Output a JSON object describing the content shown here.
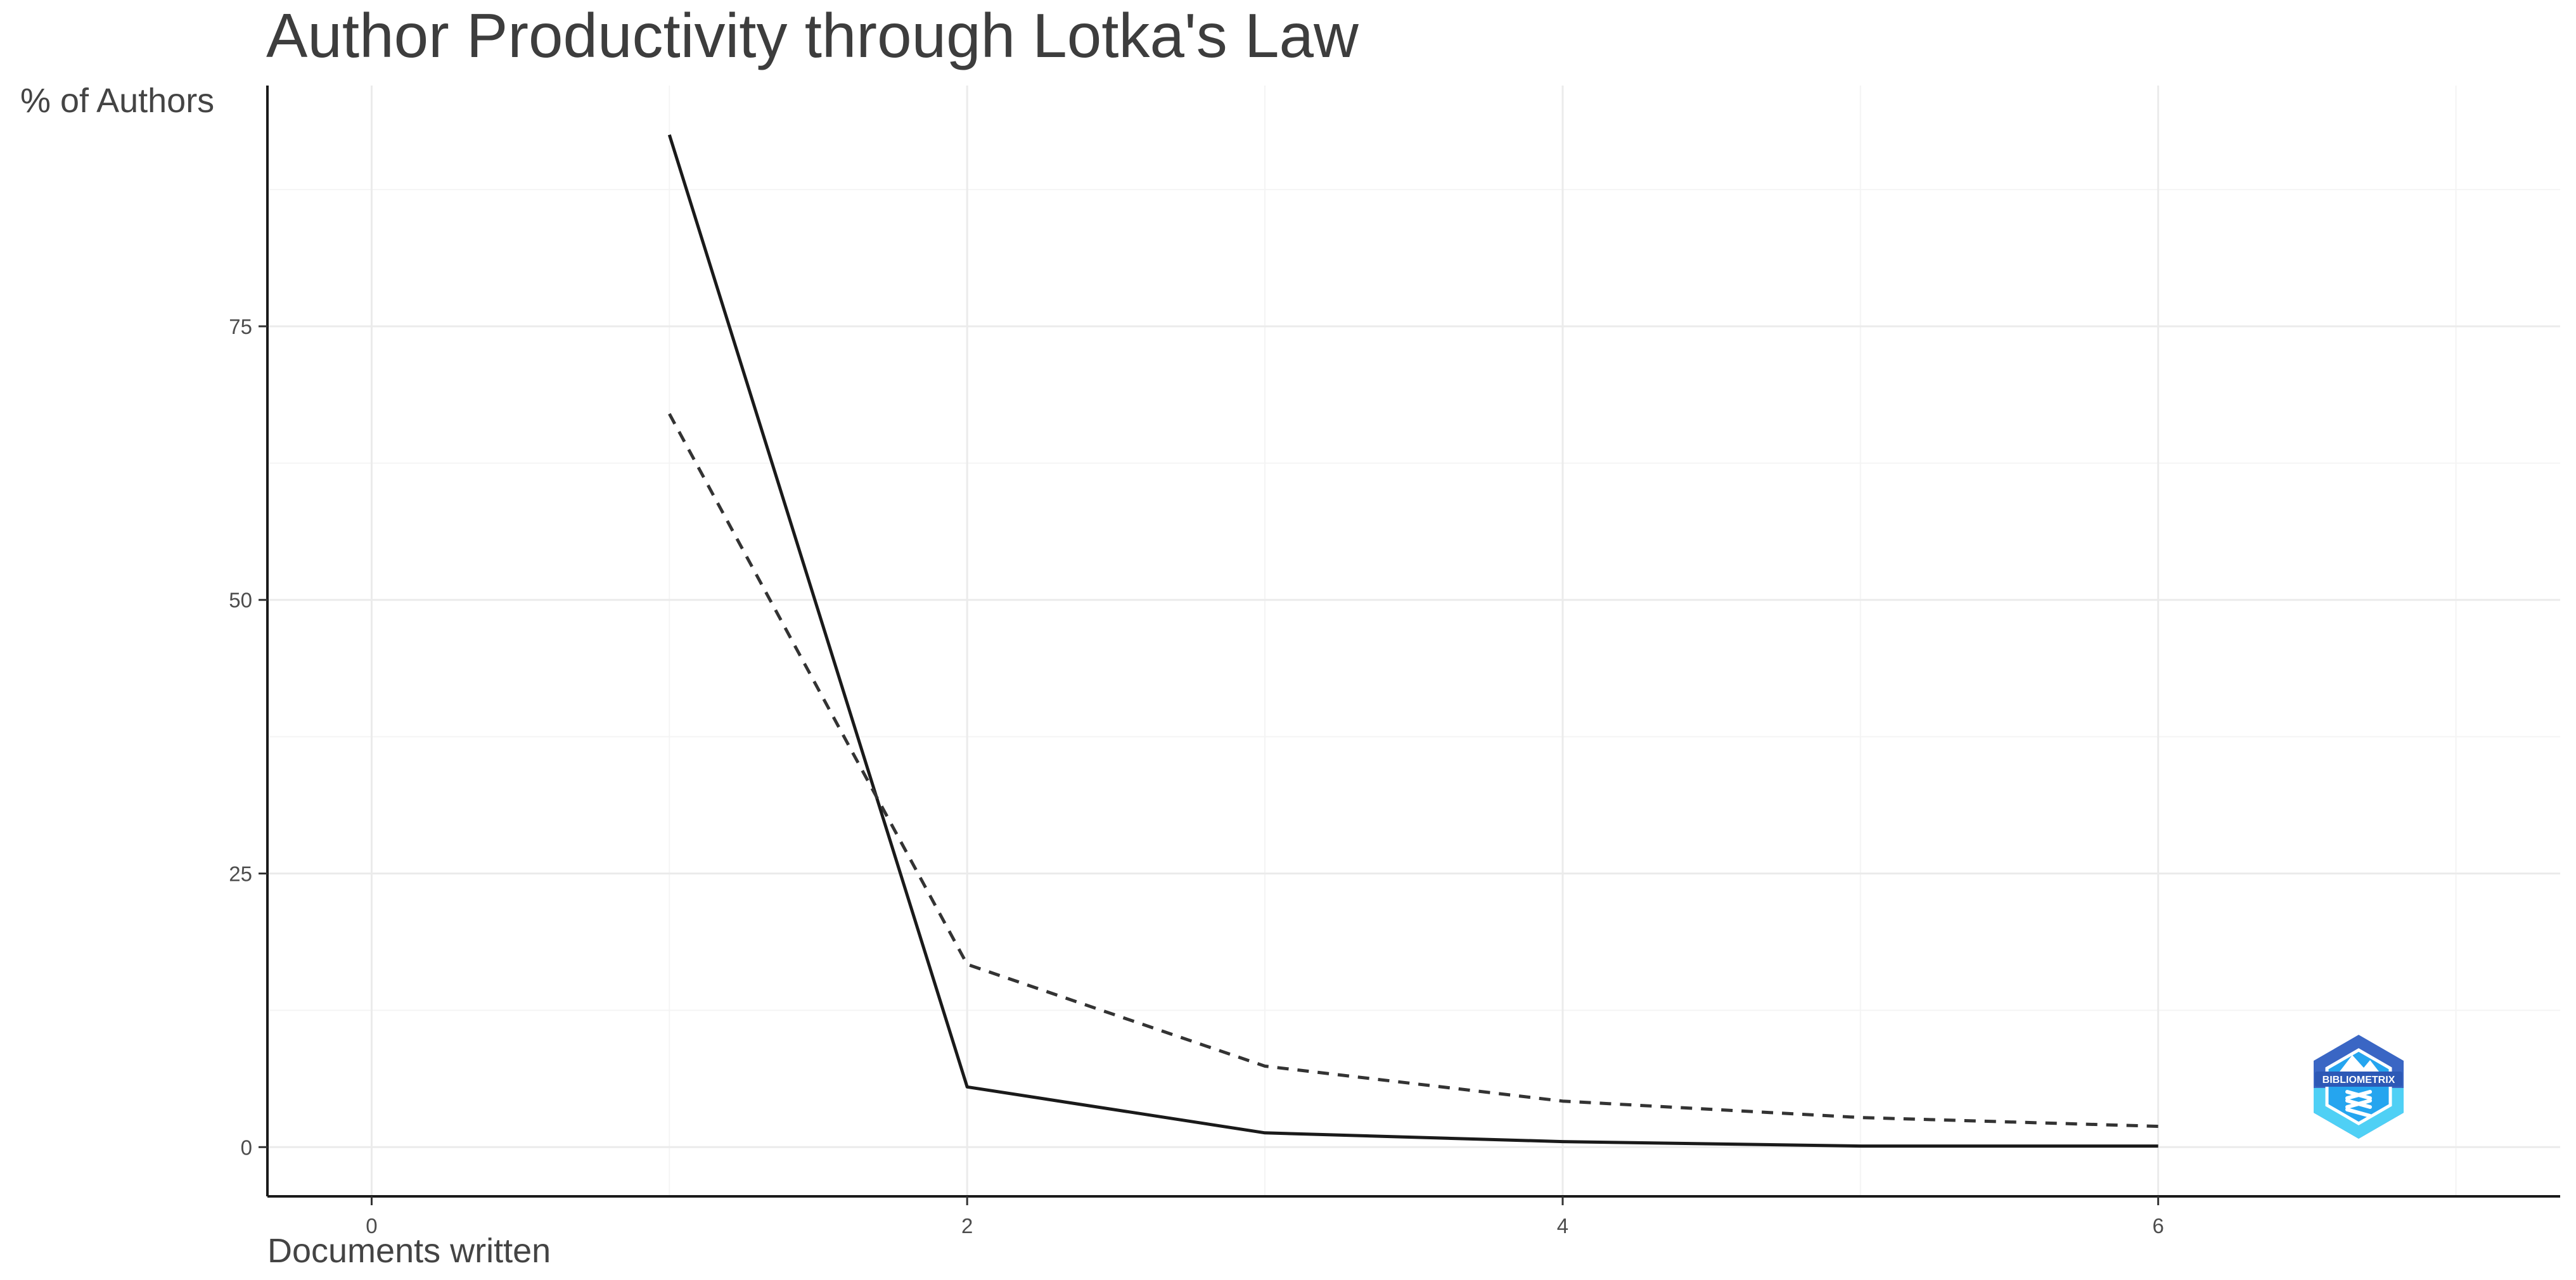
{
  "chart_data": {
    "type": "line",
    "title": "Author Productivity through Lotka's Law",
    "xlabel": "Documents written",
    "ylabel": "% of Authors",
    "xlim": [
      -0.35,
      7.35
    ],
    "ylim": [
      -4.5,
      97
    ],
    "x_ticks": [
      0,
      2,
      4,
      6
    ],
    "y_ticks": [
      0,
      25,
      50,
      75
    ],
    "grid": true,
    "legend": "none",
    "series": [
      {
        "line_style": "solid",
        "color": "#1a1a1a",
        "points": [
          {
            "x": 1,
            "y": 92.5
          },
          {
            "x": 2,
            "y": 5.5
          },
          {
            "x": 3,
            "y": 1.3
          },
          {
            "x": 4,
            "y": 0.5
          },
          {
            "x": 5,
            "y": 0.1
          },
          {
            "x": 6,
            "y": 0.1
          }
        ]
      },
      {
        "line_style": "dashed",
        "color": "#333333",
        "points": [
          {
            "x": 1,
            "y": 67
          },
          {
            "x": 2,
            "y": 16.7
          },
          {
            "x": 3,
            "y": 7.4
          },
          {
            "x": 4,
            "y": 4.2
          },
          {
            "x": 5,
            "y": 2.7
          },
          {
            "x": 6,
            "y": 1.9
          }
        ]
      }
    ],
    "logo": {
      "text": "BIBLIOMETRIX",
      "colors": [
        "#3a66c4",
        "#25a5ef",
        "#4fd0f5"
      ]
    }
  }
}
